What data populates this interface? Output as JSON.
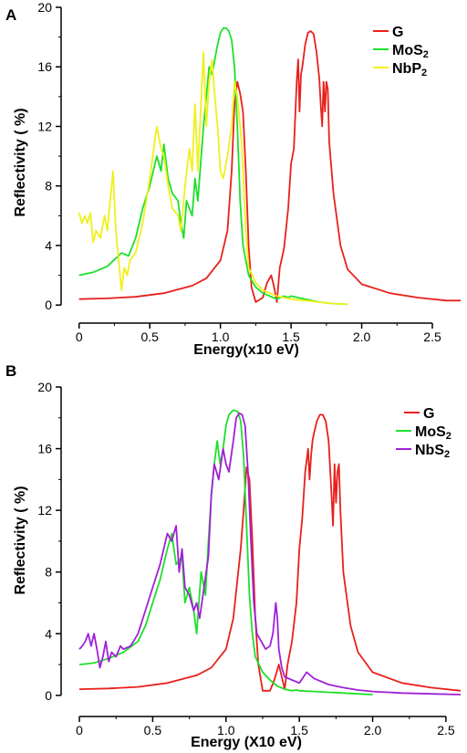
{
  "chart_data": [
    {
      "type": "line",
      "panel_label": "A",
      "xlabel": "Energy(x10 eV)",
      "ylabel": "Reflectivity ( %)",
      "xlim": [
        -0.05,
        2.7
      ],
      "ylim": [
        -0.6,
        20
      ],
      "xticks": [
        0,
        0.5,
        1.0,
        1.5,
        2.0,
        2.5
      ],
      "xtick_labels": [
        "0",
        "0.5",
        "1.0",
        "1.5",
        "2.0",
        "2.5"
      ],
      "yticks": [
        0,
        4,
        8,
        12,
        16,
        20
      ],
      "ytick_labels": [
        "0",
        "4",
        "8",
        "12",
        "16",
        "20"
      ],
      "grid": false,
      "legend_position": "top-right",
      "series": [
        {
          "name": "G",
          "color": "#e8201c",
          "x": [
            0,
            0.2,
            0.4,
            0.6,
            0.8,
            0.9,
            1.0,
            1.05,
            1.08,
            1.1,
            1.12,
            1.14,
            1.16,
            1.18,
            1.2,
            1.22,
            1.25,
            1.3,
            1.33,
            1.36,
            1.38,
            1.4,
            1.42,
            1.45,
            1.48,
            1.5,
            1.52,
            1.54,
            1.55,
            1.56,
            1.57,
            1.58,
            1.6,
            1.62,
            1.64,
            1.66,
            1.68,
            1.7,
            1.71,
            1.72,
            1.73,
            1.74,
            1.75,
            1.76,
            1.77,
            1.8,
            1.85,
            1.9,
            2.0,
            2.2,
            2.4,
            2.6,
            2.7
          ],
          "y": [
            0.4,
            0.45,
            0.55,
            0.8,
            1.3,
            1.8,
            3.0,
            5.0,
            9.0,
            13.5,
            15.0,
            14.2,
            13.0,
            9.0,
            4.0,
            1.2,
            0.2,
            0.5,
            1.5,
            2.0,
            1.2,
            0.2,
            2.5,
            3.8,
            6.5,
            9.5,
            10.5,
            15.0,
            16.5,
            13.0,
            15.5,
            16.0,
            17.5,
            18.3,
            18.4,
            18.2,
            17.0,
            15.2,
            13.5,
            12.0,
            15.0,
            13.0,
            15.0,
            14.5,
            11.0,
            7.5,
            4.0,
            2.4,
            1.4,
            0.8,
            0.5,
            0.3,
            0.3
          ]
        },
        {
          "name": "MoS2",
          "color": "#1ee02a",
          "x": [
            0,
            0.1,
            0.2,
            0.3,
            0.35,
            0.4,
            0.45,
            0.5,
            0.55,
            0.58,
            0.6,
            0.63,
            0.66,
            0.7,
            0.72,
            0.74,
            0.76,
            0.78,
            0.8,
            0.82,
            0.84,
            0.86,
            0.88,
            0.9,
            0.92,
            0.94,
            0.96,
            0.98,
            1.0,
            1.02,
            1.04,
            1.06,
            1.08,
            1.1,
            1.12,
            1.14,
            1.16,
            1.2,
            1.25,
            1.3,
            1.4,
            1.45,
            1.48,
            1.5,
            1.6,
            1.7,
            1.8,
            1.9
          ],
          "y": [
            2.0,
            2.2,
            2.6,
            3.5,
            3.3,
            4.5,
            6.5,
            8.0,
            10.0,
            9.0,
            10.8,
            8.5,
            7.5,
            7.0,
            5.5,
            4.5,
            7.0,
            6.5,
            6.0,
            8.5,
            7.0,
            9.5,
            12.0,
            14.0,
            16.0,
            15.5,
            16.5,
            17.5,
            18.3,
            18.6,
            18.6,
            18.4,
            17.8,
            16.0,
            12.0,
            7.0,
            4.0,
            2.0,
            1.2,
            0.8,
            0.4,
            0.6,
            0.5,
            0.6,
            0.4,
            0.2,
            0.1,
            0.05
          ]
        },
        {
          "name": "NbP2",
          "color": "#f0f01c",
          "x": [
            0,
            0.02,
            0.04,
            0.06,
            0.08,
            0.1,
            0.12,
            0.15,
            0.18,
            0.2,
            0.22,
            0.24,
            0.26,
            0.28,
            0.3,
            0.32,
            0.34,
            0.36,
            0.4,
            0.45,
            0.5,
            0.55,
            0.58,
            0.6,
            0.63,
            0.66,
            0.7,
            0.72,
            0.75,
            0.78,
            0.8,
            0.82,
            0.84,
            0.86,
            0.88,
            0.9,
            0.92,
            0.94,
            0.96,
            0.98,
            1.0,
            1.02,
            1.05,
            1.08,
            1.1,
            1.12,
            1.15,
            1.18,
            1.2,
            1.25,
            1.3,
            1.4,
            1.5,
            1.6,
            1.7,
            1.8,
            1.9
          ],
          "y": [
            6.2,
            5.5,
            6.0,
            5.5,
            6.2,
            4.2,
            5.0,
            4.5,
            6.0,
            5.0,
            7.0,
            9.0,
            5.0,
            3.0,
            1.0,
            2.5,
            2.0,
            3.0,
            3.5,
            5.5,
            8.5,
            12.0,
            10.5,
            10.0,
            8.0,
            6.5,
            6.0,
            5.0,
            8.0,
            10.5,
            9.0,
            13.5,
            9.0,
            13.0,
            17.0,
            12.0,
            15.0,
            16.5,
            14.0,
            12.0,
            9.0,
            8.5,
            10.0,
            12.0,
            15.0,
            14.0,
            11.0,
            5.0,
            2.5,
            1.5,
            1.0,
            0.6,
            0.4,
            0.3,
            0.2,
            0.1,
            0.05
          ]
        }
      ]
    },
    {
      "type": "line",
      "panel_label": "B",
      "xlabel": "Energy (X10 eV)",
      "ylabel": "Reflectivity ( %)",
      "xlim": [
        -0.05,
        2.6
      ],
      "ylim": [
        -0.6,
        20
      ],
      "xticks": [
        0,
        0.5,
        1.0,
        1.5,
        2.0,
        2.5
      ],
      "xtick_labels": [
        "0",
        "0.5",
        "1.0",
        "1.5",
        "2.0",
        "2.5"
      ],
      "yticks": [
        0,
        4,
        8,
        12,
        16,
        20
      ],
      "ytick_labels": [
        "0",
        "4",
        "8",
        "12",
        "16",
        "20"
      ],
      "grid": false,
      "legend_position": "top-right",
      "series": [
        {
          "name": "G",
          "color": "#e8201c",
          "x": [
            0,
            0.2,
            0.4,
            0.6,
            0.8,
            0.9,
            1.0,
            1.05,
            1.1,
            1.12,
            1.14,
            1.16,
            1.18,
            1.2,
            1.22,
            1.25,
            1.3,
            1.33,
            1.36,
            1.38,
            1.4,
            1.42,
            1.45,
            1.48,
            1.5,
            1.52,
            1.54,
            1.56,
            1.57,
            1.58,
            1.59,
            1.6,
            1.62,
            1.64,
            1.66,
            1.68,
            1.7,
            1.72,
            1.73,
            1.74,
            1.75,
            1.76,
            1.77,
            1.78,
            1.8,
            1.85,
            1.9,
            2.0,
            2.2,
            2.4,
            2.6
          ],
          "y": [
            0.4,
            0.45,
            0.55,
            0.8,
            1.3,
            1.8,
            3.0,
            5.0,
            9.5,
            12.0,
            14.8,
            14.0,
            10.0,
            5.0,
            2.0,
            0.3,
            0.3,
            1.0,
            2.0,
            1.2,
            0.4,
            2.0,
            3.5,
            6.0,
            9.5,
            11.5,
            14.5,
            16.0,
            14.0,
            15.5,
            16.5,
            17.0,
            17.8,
            18.2,
            18.2,
            17.8,
            16.5,
            13.0,
            11.0,
            15.0,
            12.5,
            14.5,
            15.0,
            12.0,
            8.0,
            4.5,
            2.8,
            1.5,
            0.8,
            0.5,
            0.3
          ]
        },
        {
          "name": "MoS2",
          "color": "#1ee02a",
          "x": [
            0,
            0.1,
            0.2,
            0.3,
            0.4,
            0.45,
            0.5,
            0.55,
            0.6,
            0.63,
            0.66,
            0.7,
            0.72,
            0.75,
            0.78,
            0.8,
            0.83,
            0.86,
            0.88,
            0.9,
            0.92,
            0.94,
            0.96,
            0.98,
            1.0,
            1.02,
            1.05,
            1.08,
            1.1,
            1.12,
            1.14,
            1.16,
            1.18,
            1.2,
            1.25,
            1.3,
            1.35,
            1.4,
            1.45,
            1.48,
            1.5,
            1.6,
            1.7,
            1.8,
            1.9,
            2.0
          ],
          "y": [
            2.0,
            2.1,
            2.4,
            2.8,
            3.5,
            4.5,
            6.0,
            7.5,
            9.5,
            10.5,
            8.5,
            9.0,
            6.0,
            7.0,
            5.5,
            4.0,
            8.0,
            6.5,
            10.0,
            13.0,
            15.0,
            16.5,
            15.0,
            16.0,
            17.5,
            18.2,
            18.5,
            18.4,
            17.8,
            15.5,
            11.0,
            6.5,
            4.0,
            2.5,
            1.5,
            1.0,
            0.6,
            0.4,
            0.3,
            0.35,
            0.3,
            0.25,
            0.2,
            0.15,
            0.1,
            0.05
          ]
        },
        {
          "name": "NbS2",
          "color": "#a020d8",
          "x": [
            0,
            0.02,
            0.04,
            0.06,
            0.08,
            0.1,
            0.12,
            0.14,
            0.16,
            0.18,
            0.2,
            0.22,
            0.25,
            0.28,
            0.3,
            0.35,
            0.4,
            0.45,
            0.5,
            0.55,
            0.6,
            0.63,
            0.66,
            0.68,
            0.7,
            0.72,
            0.75,
            0.78,
            0.8,
            0.82,
            0.85,
            0.88,
            0.9,
            0.92,
            0.95,
            0.98,
            1.0,
            1.02,
            1.05,
            1.07,
            1.09,
            1.11,
            1.13,
            1.15,
            1.17,
            1.19,
            1.21,
            1.24,
            1.27,
            1.3,
            1.32,
            1.34,
            1.35,
            1.36,
            1.38,
            1.4,
            1.45,
            1.5,
            1.55,
            1.6,
            1.7,
            1.8,
            1.9,
            2.0,
            2.2,
            2.4,
            2.6
          ],
          "y": [
            3.0,
            3.2,
            3.5,
            4.0,
            3.2,
            4.0,
            3.0,
            1.8,
            2.5,
            3.5,
            2.2,
            2.8,
            2.5,
            3.2,
            3.0,
            3.2,
            4.0,
            5.5,
            7.0,
            8.5,
            10.5,
            10.0,
            11.0,
            8.0,
            9.5,
            7.0,
            6.5,
            5.5,
            6.0,
            5.0,
            7.0,
            9.0,
            13.0,
            15.0,
            14.0,
            16.0,
            15.0,
            14.5,
            16.5,
            18.0,
            18.3,
            18.2,
            17.5,
            14.5,
            10.0,
            6.0,
            4.0,
            3.5,
            3.0,
            3.2,
            4.0,
            6.0,
            5.0,
            3.0,
            1.8,
            1.2,
            1.0,
            0.8,
            1.5,
            1.1,
            0.7,
            0.5,
            0.35,
            0.25,
            0.15,
            0.1,
            0.05
          ]
        }
      ]
    }
  ]
}
